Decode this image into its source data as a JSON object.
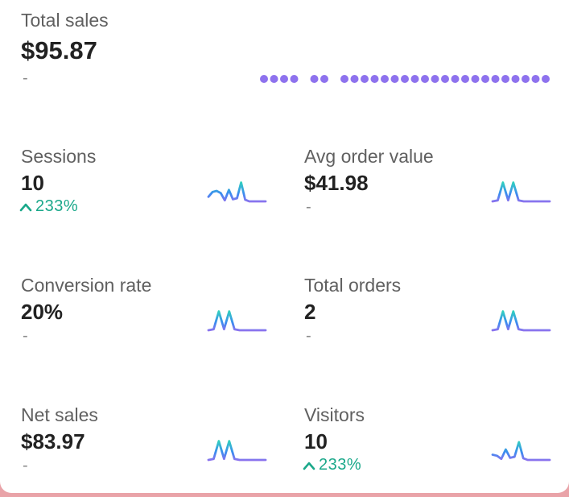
{
  "colors": {
    "purple": "#8e72ee",
    "teal": "#2ee6b0",
    "blue": "#3b8bf0",
    "green": "#1aa88a"
  },
  "total_sales": {
    "label": "Total sales",
    "value": "$95.87",
    "change": "-",
    "chart_data": {
      "type": "bar",
      "values": [
        0,
        0,
        0,
        0,
        1,
        0,
        0,
        0.86,
        0,
        0,
        0,
        0,
        0,
        0,
        0,
        0,
        0,
        0,
        0,
        0,
        0,
        0,
        0,
        0,
        0,
        0,
        0,
        0,
        0
      ]
    }
  },
  "metrics": [
    {
      "label": "Sessions",
      "value": "10",
      "change": "233%",
      "change_icon": "chevron-up-icon",
      "sparkline": [
        0.22,
        0.45,
        0.5,
        0.4,
        0.05,
        0.55,
        0.1,
        0.15,
        0.9,
        0.08,
        0,
        0,
        0,
        0,
        0
      ]
    },
    {
      "label": "Avg order value",
      "value": "$41.98",
      "change": "-",
      "sparkline": [
        0,
        0.05,
        0.9,
        0.05,
        0.9,
        0.05,
        0,
        0,
        0,
        0,
        0,
        0
      ]
    },
    {
      "label": "Conversion rate",
      "value": "20%",
      "change": "-",
      "sparkline": [
        0,
        0.05,
        0.9,
        0.05,
        0.9,
        0.05,
        0,
        0,
        0,
        0,
        0,
        0
      ]
    },
    {
      "label": "Total orders",
      "value": "2",
      "change": "-",
      "sparkline": [
        0,
        0.05,
        0.9,
        0.05,
        0.9,
        0.05,
        0,
        0,
        0,
        0,
        0,
        0
      ]
    },
    {
      "label": "Net sales",
      "value": "$83.97",
      "change": "-",
      "sparkline": [
        0,
        0.05,
        0.9,
        0.05,
        0.9,
        0.05,
        0,
        0,
        0,
        0,
        0,
        0
      ]
    },
    {
      "label": "Visitors",
      "value": "10",
      "change": "233%",
      "change_icon": "chevron-up-icon",
      "sparkline": [
        0.25,
        0.2,
        0.05,
        0.5,
        0.1,
        0.15,
        0.85,
        0.08,
        0,
        0,
        0,
        0,
        0,
        0
      ]
    }
  ]
}
